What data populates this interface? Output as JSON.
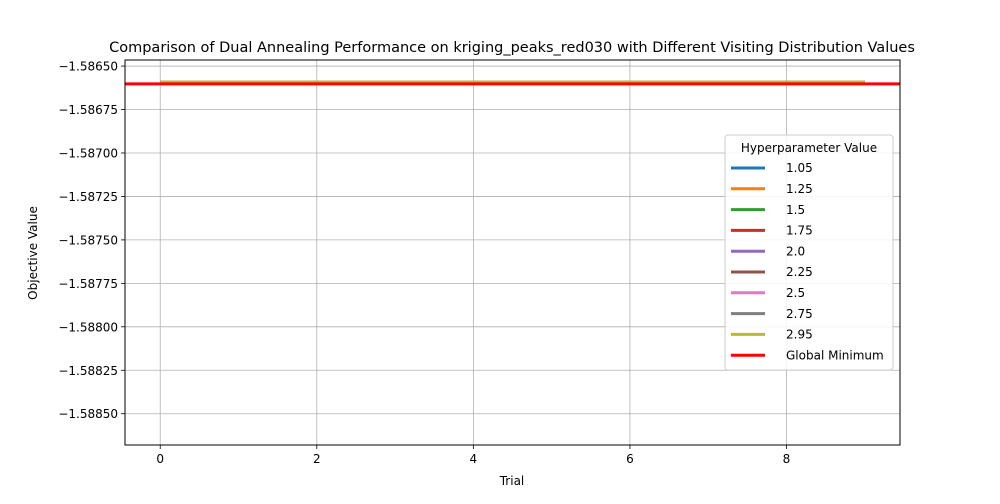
{
  "chart_data": {
    "type": "line",
    "title": "Comparison of Dual Annealing Performance on kriging_peaks_red030 with Different Visiting Distribution Values",
    "xlabel": "Trial",
    "ylabel": "Objective Value",
    "xlim": [
      -0.45,
      9.45
    ],
    "ylim": [
      -1.58868,
      -1.586465
    ],
    "x_ticks": [
      0,
      2,
      4,
      6,
      8
    ],
    "x_tick_labels": [
      "0",
      "2",
      "4",
      "6",
      "8"
    ],
    "y_ticks": [
      -1.5865,
      -1.58675,
      -1.587,
      -1.58725,
      -1.5875,
      -1.58775,
      -1.588,
      -1.58825,
      -1.5885
    ],
    "y_tick_labels": [
      "−1.58650",
      "−1.58675",
      "−1.58700",
      "−1.58725",
      "−1.58750",
      "−1.58775",
      "−1.58800",
      "−1.58825",
      "−1.58850"
    ],
    "grid": true,
    "legend_title": "Hyperparameter Value",
    "legend_position": "center-right",
    "x": [
      0,
      1,
      2,
      3,
      4,
      5,
      6,
      7,
      8,
      9
    ],
    "series": [
      {
        "name": "1.05",
        "color": "#1f77b4",
        "values": [
          -1.586592,
          -1.586592,
          -1.586592,
          -1.586592,
          -1.586592,
          -1.586592,
          -1.586592,
          -1.586592,
          -1.586592,
          -1.586592
        ]
      },
      {
        "name": "1.25",
        "color": "#ff7f0e",
        "values": [
          -1.586592,
          -1.586592,
          -1.586592,
          -1.586592,
          -1.586592,
          -1.586592,
          -1.586592,
          -1.586592,
          -1.586592,
          -1.586592
        ]
      },
      {
        "name": "1.5",
        "color": "#2ca02c",
        "values": [
          -1.586592,
          -1.586592,
          -1.586592,
          -1.586592,
          -1.586592,
          -1.586592,
          -1.586592,
          -1.586592,
          -1.586592,
          -1.586592
        ]
      },
      {
        "name": "1.75",
        "color": "#d62728",
        "values": [
          -1.586592,
          -1.586592,
          -1.586592,
          -1.586592,
          -1.586592,
          -1.586592,
          -1.586592,
          -1.586592,
          -1.586592,
          -1.586592
        ]
      },
      {
        "name": "2.0",
        "color": "#9467bd",
        "values": [
          -1.586592,
          -1.586592,
          -1.586592,
          -1.586592,
          -1.586592,
          -1.586592,
          -1.586592,
          -1.586592,
          -1.586592,
          -1.586592
        ]
      },
      {
        "name": "2.25",
        "color": "#8c564b",
        "values": [
          -1.586592,
          -1.586592,
          -1.586592,
          -1.586592,
          -1.586592,
          -1.586592,
          -1.586592,
          -1.586592,
          -1.586592,
          -1.586592
        ]
      },
      {
        "name": "2.5",
        "color": "#e377c2",
        "values": [
          -1.586592,
          -1.586592,
          -1.586592,
          -1.586592,
          -1.586592,
          -1.586592,
          -1.586592,
          -1.586592,
          -1.586592,
          -1.586592
        ]
      },
      {
        "name": "2.75",
        "color": "#7f7f7f",
        "values": [
          -1.586592,
          -1.586592,
          -1.586592,
          -1.586592,
          -1.586592,
          -1.586592,
          -1.586592,
          -1.586592,
          -1.586592,
          -1.586592
        ]
      },
      {
        "name": "2.95",
        "color": "#bcbd22",
        "values": [
          -1.586592,
          -1.586592,
          -1.586592,
          -1.586592,
          -1.586592,
          -1.586592,
          -1.586592,
          -1.586592,
          -1.586592,
          -1.586592
        ]
      }
    ],
    "reference_line": {
      "name": "Global Minimum",
      "color": "#ff0000",
      "value": -1.586602
    }
  }
}
